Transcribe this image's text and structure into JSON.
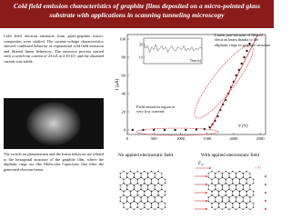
{
  "header": {
    "title": "Cold field emission characteristics of graphite films deposited on a micro-pointed glass substrate with applications in scanning tunneling microscopy"
  },
  "paragraphs": [
    "Cold field electron emission from glass-graphite micro-composites were studied. The current-voltage characteristics showed combined behavior of exponential cold field emission and filtered linear behaviors. The emission process started with a switch-on current of 23 nA at 2.30 kV, and the obtained current was stable.",
    "The switch-on phenomenon and the linear behavior are related to the hexagonal structure of the graphite film, where the aliphatic rings act like Molecular Capacitors that filter the generated electron beam."
  ],
  "chart_data": [
    {
      "type": "scatter",
      "x_label": "V (V)",
      "y_label": "I (μA)",
      "annotations": [
        "Linear part because of filtered electron beam thanks to the aliphatic rings in graphite structure",
        "Field emission region at very low currents"
      ],
      "xlim": [
        0,
        2600
      ],
      "ylim": [
        -5,
        105
      ],
      "xticks": [
        0,
        500,
        1000,
        1500,
        2000,
        2500
      ],
      "yticks": [
        0,
        20,
        40,
        60,
        80,
        100
      ],
      "series": [
        {
          "color": "#222222",
          "x": [
            100,
            300,
            500,
            700,
            900,
            1100,
            1300,
            1450,
            1550,
            1600,
            1650,
            1700,
            1750,
            1800,
            1850,
            1900,
            1950,
            2000,
            2050,
            2100,
            2150,
            2200,
            2250,
            2300
          ],
          "values": [
            0,
            0,
            0,
            0,
            0,
            0,
            0.5,
            1,
            3,
            6,
            10,
            15,
            22,
            28,
            33,
            40,
            47,
            53,
            60,
            66,
            73,
            80,
            87,
            95
          ]
        },
        {
          "color": "#d32f2f",
          "x": [
            1550,
            2450
          ],
          "values": [
            0,
            104
          ]
        }
      ]
    },
    {
      "type": "line",
      "x_label": "Time (s)",
      "ylim": [
        5,
        25
      ],
      "yticks": [
        10,
        20
      ],
      "color": "#222222",
      "x": [
        0,
        1,
        2,
        3,
        4,
        5,
        6,
        7,
        8,
        9,
        10,
        11,
        12,
        13,
        14,
        15,
        16,
        17,
        18,
        19,
        20,
        21,
        22,
        23,
        24,
        25,
        26,
        27,
        28,
        29
      ],
      "values": [
        21,
        17,
        19,
        14,
        18,
        16,
        20,
        15,
        17,
        19,
        16,
        18,
        14,
        17,
        19,
        16,
        15,
        18,
        17,
        16,
        19,
        15,
        17,
        16,
        18,
        15,
        17,
        16,
        18,
        17
      ]
    }
  ],
  "diagrams": {
    "left_label": "No applied electrostatic field",
    "right_label": "With applied electrostatic field",
    "force": {
      "label": "F",
      "subscript": "el"
    },
    "charge": "+ V"
  }
}
